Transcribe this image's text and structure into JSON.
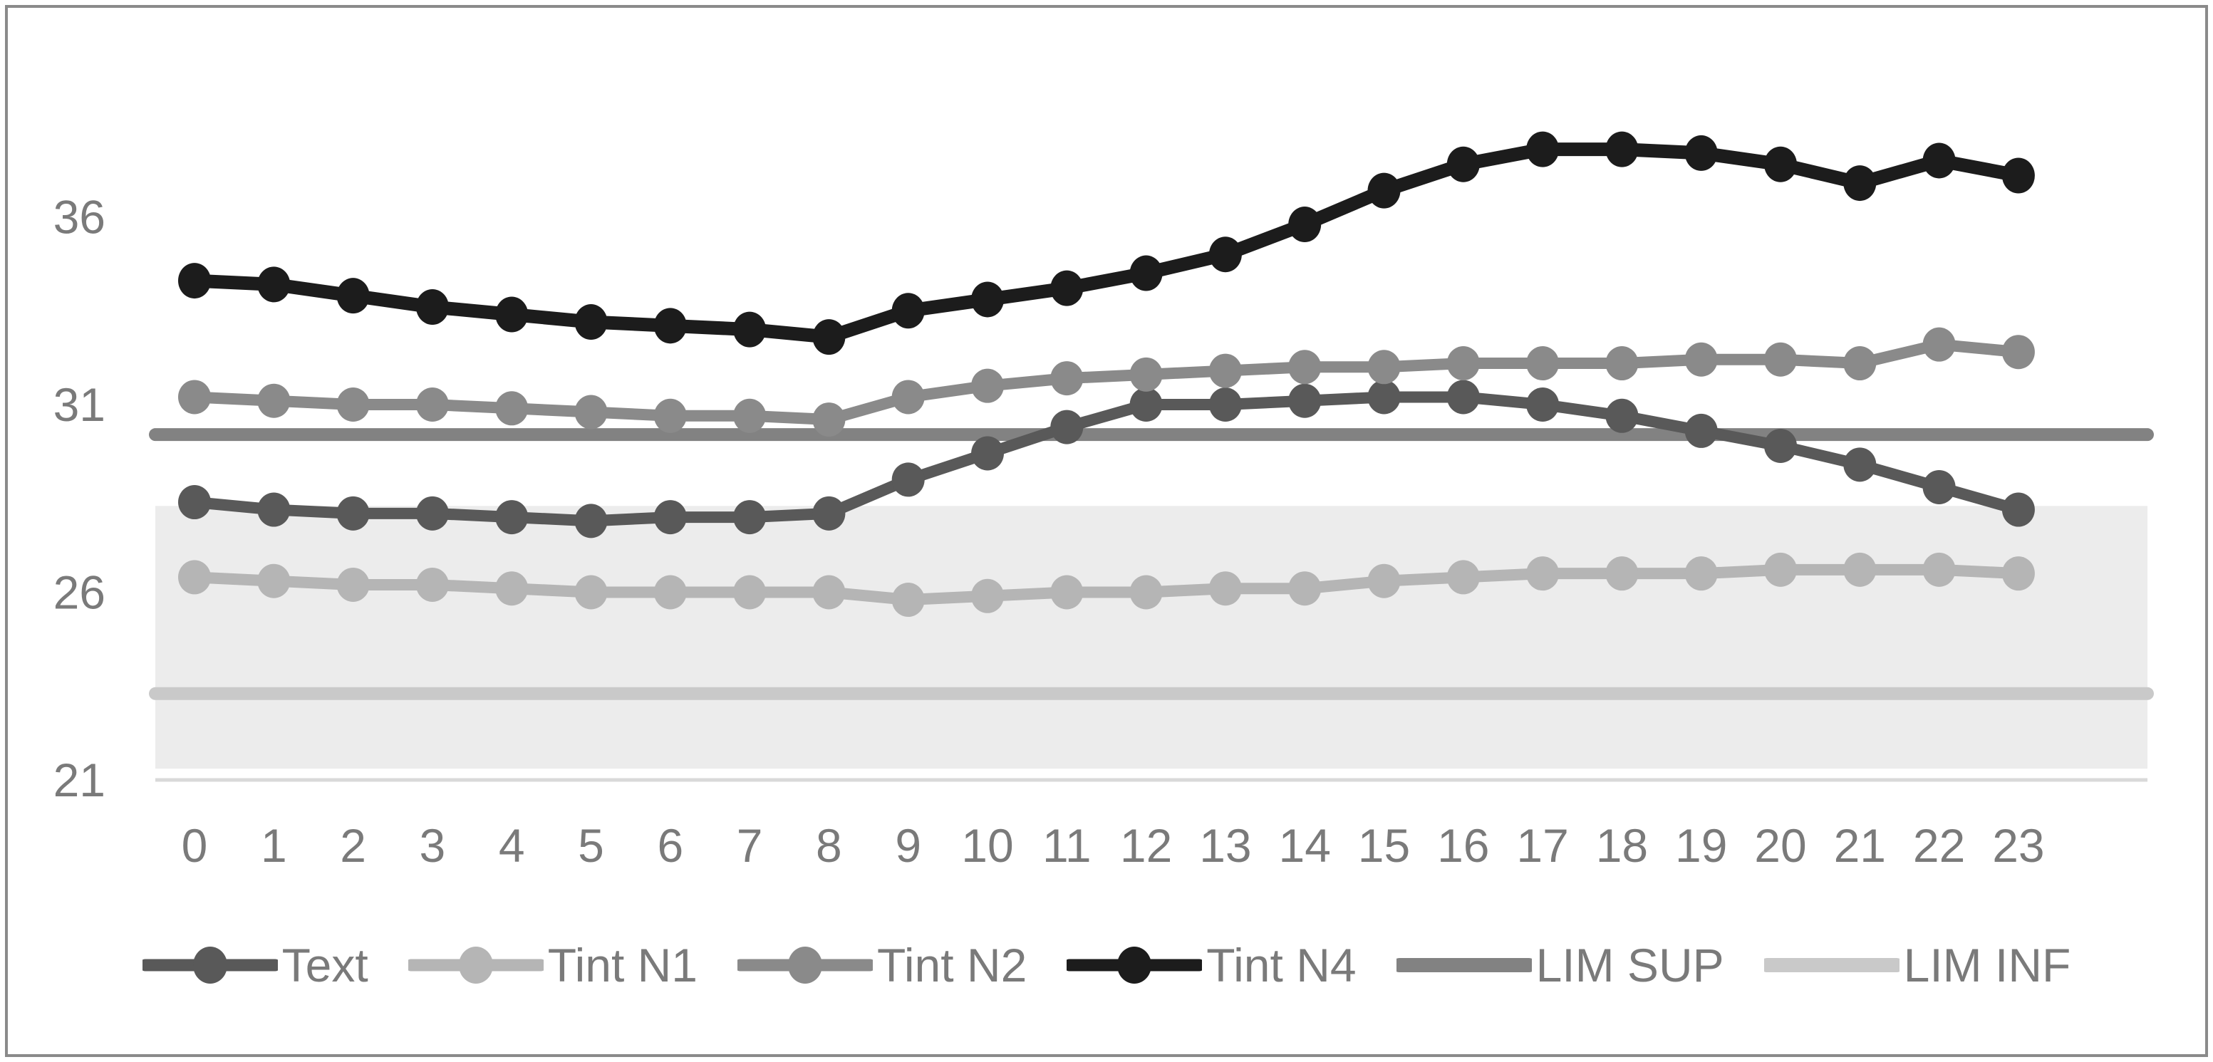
{
  "page": {
    "background": "#ffffff",
    "border_color": "#8a8a8a",
    "axis_label_color": "#7a7a7a"
  },
  "chart_data": {
    "type": "line",
    "title": "",
    "xlabel": "",
    "ylabel": "",
    "grid": false,
    "legend_position": "bottom",
    "categories": [
      0,
      1,
      2,
      3,
      4,
      5,
      6,
      7,
      8,
      9,
      10,
      11,
      12,
      13,
      14,
      15,
      16,
      17,
      18,
      19,
      20,
      21,
      22,
      23
    ],
    "y_ticks": [
      21,
      26,
      31,
      36
    ],
    "y_axis_range": [
      19.5,
      40
    ],
    "series": [
      {
        "name": "Text",
        "color": "#595959",
        "values": [
          28.4,
          28.2,
          28.1,
          28.1,
          28.0,
          27.9,
          28.0,
          28.0,
          28.1,
          29.0,
          29.7,
          30.4,
          31.0,
          31.0,
          31.1,
          31.2,
          31.2,
          31.0,
          30.7,
          30.3,
          29.9,
          29.4,
          28.8,
          28.2
        ]
      },
      {
        "name": "Tint N1",
        "color": "#b5b5b5",
        "values": [
          26.4,
          26.3,
          26.2,
          26.2,
          26.1,
          26.0,
          26.0,
          26.0,
          26.0,
          25.8,
          25.9,
          26.0,
          26.0,
          26.1,
          26.1,
          26.3,
          26.4,
          26.5,
          26.5,
          26.5,
          26.6,
          26.6,
          26.6,
          26.5
        ]
      },
      {
        "name": "Tint N2",
        "color": "#8a8a8a",
        "values": [
          31.2,
          31.1,
          31.0,
          31.0,
          30.9,
          30.8,
          30.7,
          30.7,
          30.6,
          31.2,
          31.5,
          31.7,
          31.8,
          31.9,
          32.0,
          32.0,
          32.1,
          32.1,
          32.1,
          32.2,
          32.2,
          32.1,
          32.6,
          32.4
        ]
      },
      {
        "name": "Tint N4",
        "color": "#1c1c1c",
        "values": [
          34.3,
          34.2,
          33.9,
          33.6,
          33.4,
          33.2,
          33.1,
          33.0,
          32.8,
          33.5,
          33.8,
          34.1,
          34.5,
          35.0,
          35.8,
          36.7,
          37.4,
          37.8,
          37.8,
          37.7,
          37.4,
          36.9,
          37.5,
          37.1
        ]
      }
    ],
    "reference_lines": [
      {
        "name": "LIM SUP",
        "value": 30.2,
        "color": "#828282"
      },
      {
        "name": "LIM INF",
        "value": 23.3,
        "color": "#c9c9c9"
      }
    ],
    "band": {
      "from": 21.3,
      "to": 28.3,
      "color": "#ececec"
    },
    "x_axis_baseline": {
      "value": 21,
      "color": "#d9d9d9"
    }
  }
}
